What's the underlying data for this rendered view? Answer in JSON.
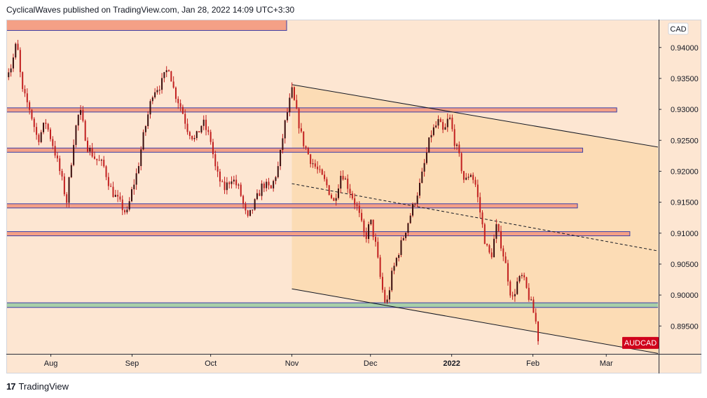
{
  "header": {
    "publisher_line": "CyclicalWaves published on TradingView.com, Jan 28, 2022 14:09 UTC+3:30"
  },
  "footer": {
    "logo": "17",
    "brand": "TradingView"
  },
  "colors": {
    "background": "#fde6d2",
    "channel_fill": "#fbd9b0",
    "zone_fill": "#f4a086",
    "zone_border": "#3b3fa8",
    "support_fill": "#a8cfa8",
    "candle": "#c21f1f",
    "price_tag": "#d0021b"
  },
  "chart_data": {
    "type": "candlestick",
    "symbol_tag": "AUDCAD",
    "currency_label": "CAD",
    "x_tick_labels": [
      "Aug",
      "Sep",
      "Oct",
      "Nov",
      "Dec",
      "2022",
      "Feb",
      "Mar"
    ],
    "y_tick_labels": [
      "0.94000",
      "0.93500",
      "0.93000",
      "0.92500",
      "0.92000",
      "0.91500",
      "0.91000",
      "0.90500",
      "0.90000",
      "0.89500"
    ],
    "ylim": [
      0.8905,
      0.9445
    ],
    "x_range": [
      "2021-07-15",
      "2022-03-21"
    ],
    "last_price": 0.893,
    "price_path": [
      [
        "2021-07-15",
        0.936
      ],
      [
        "2021-07-17",
        0.937
      ],
      [
        "2021-07-19",
        0.941
      ],
      [
        "2021-07-21",
        0.933
      ],
      [
        "2021-07-24",
        0.93
      ],
      [
        "2021-07-27",
        0.925
      ],
      [
        "2021-07-30",
        0.928
      ],
      [
        "2021-08-02",
        0.924
      ],
      [
        "2021-08-05",
        0.919
      ],
      [
        "2021-08-07",
        0.915
      ],
      [
        "2021-08-10",
        0.926
      ],
      [
        "2021-08-12",
        0.93
      ],
      [
        "2021-08-15",
        0.924
      ],
      [
        "2021-08-18",
        0.922
      ],
      [
        "2021-08-21",
        0.921
      ],
      [
        "2021-08-24",
        0.917
      ],
      [
        "2021-08-27",
        0.915
      ],
      [
        "2021-08-30",
        0.913
      ],
      [
        "2021-09-01",
        0.917
      ],
      [
        "2021-09-03",
        0.92
      ],
      [
        "2021-09-05",
        0.925
      ],
      [
        "2021-09-07",
        0.929
      ],
      [
        "2021-09-09",
        0.933
      ],
      [
        "2021-09-12",
        0.934
      ],
      [
        "2021-09-15",
        0.937
      ],
      [
        "2021-09-17",
        0.933
      ],
      [
        "2021-09-20",
        0.93
      ],
      [
        "2021-09-22",
        0.927
      ],
      [
        "2021-09-25",
        0.925
      ],
      [
        "2021-09-28",
        0.928
      ],
      [
        "2021-10-01",
        0.925
      ],
      [
        "2021-10-03",
        0.92
      ],
      [
        "2021-10-06",
        0.917
      ],
      [
        "2021-10-09",
        0.919
      ],
      [
        "2021-10-12",
        0.917
      ],
      [
        "2021-10-15",
        0.912
      ],
      [
        "2021-10-18",
        0.915
      ],
      [
        "2021-10-21",
        0.918
      ],
      [
        "2021-10-24",
        0.917
      ],
      [
        "2021-10-27",
        0.921
      ],
      [
        "2021-10-29",
        0.927
      ],
      [
        "2021-11-01",
        0.933
      ],
      [
        "2021-11-03",
        0.929
      ],
      [
        "2021-11-05",
        0.925
      ],
      [
        "2021-11-08",
        0.922
      ],
      [
        "2021-11-11",
        0.92
      ],
      [
        "2021-11-14",
        0.918
      ],
      [
        "2021-11-17",
        0.915
      ],
      [
        "2021-11-20",
        0.92
      ],
      [
        "2021-11-23",
        0.917
      ],
      [
        "2021-11-26",
        0.914
      ],
      [
        "2021-11-29",
        0.909
      ],
      [
        "2021-12-01",
        0.912
      ],
      [
        "2021-12-03",
        0.908
      ],
      [
        "2021-12-05",
        0.902
      ],
      [
        "2021-12-07",
        0.898
      ],
      [
        "2021-12-09",
        0.903
      ],
      [
        "2021-12-11",
        0.906
      ],
      [
        "2021-12-14",
        0.91
      ],
      [
        "2021-12-17",
        0.914
      ],
      [
        "2021-12-20",
        0.918
      ],
      [
        "2021-12-22",
        0.922
      ],
      [
        "2021-12-24",
        0.926
      ],
      [
        "2021-12-27",
        0.928
      ],
      [
        "2021-12-29",
        0.926
      ],
      [
        "2021-12-31",
        0.929
      ],
      [
        "2022-01-02",
        0.925
      ],
      [
        "2022-01-04",
        0.922
      ],
      [
        "2022-01-06",
        0.918
      ],
      [
        "2022-01-08",
        0.92
      ],
      [
        "2022-01-10",
        0.918
      ],
      [
        "2022-01-12",
        0.913
      ],
      [
        "2022-01-14",
        0.908
      ],
      [
        "2022-01-16",
        0.906
      ],
      [
        "2022-01-18",
        0.911
      ],
      [
        "2022-01-20",
        0.908
      ],
      [
        "2022-01-22",
        0.904
      ],
      [
        "2022-01-24",
        0.899
      ],
      [
        "2022-01-26",
        0.902
      ],
      [
        "2022-01-28",
        0.903
      ],
      [
        "2022-01-31",
        0.899
      ],
      [
        "2022-02-02",
        0.896
      ],
      [
        "2022-02-03",
        0.893
      ]
    ],
    "zones": [
      {
        "y1": 0.94275,
        "y2": 0.94525,
        "x1": "2021-07-15",
        "x2": "2021-10-30",
        "color": "#f4a086"
      },
      {
        "y1": 0.92975,
        "y2": 0.93025,
        "x1": "2021-07-15",
        "x2": "2022-03-05",
        "color": "#f4a086"
      },
      {
        "y1": 0.92325,
        "y2": 0.92375,
        "x1": "2021-07-15",
        "x2": "2022-02-20",
        "color": "#f4a086"
      },
      {
        "y1": 0.91425,
        "y2": 0.91475,
        "x1": "2021-07-15",
        "x2": "2022-02-18",
        "color": "#f4a086"
      },
      {
        "y1": 0.90975,
        "y2": 0.91025,
        "x1": "2021-07-15",
        "x2": "2022-03-10",
        "color": "#f4a086"
      },
      {
        "y1": 0.898,
        "y2": 0.89875,
        "x1": "2021-07-15",
        "x2": "2022-04-30",
        "color": "#a8cfa8"
      }
    ],
    "channel": {
      "upper": [
        [
          "2021-11-01",
          0.934
        ],
        [
          "2022-04-30",
          0.921
        ]
      ],
      "mid": [
        [
          "2021-11-01",
          0.918
        ],
        [
          "2022-04-30",
          0.904
        ]
      ],
      "lower": [
        [
          "2021-11-01",
          0.901
        ],
        [
          "2022-03-15",
          0.891
        ]
      ],
      "fill_color": "#fbd9b0"
    },
    "grid": false
  }
}
